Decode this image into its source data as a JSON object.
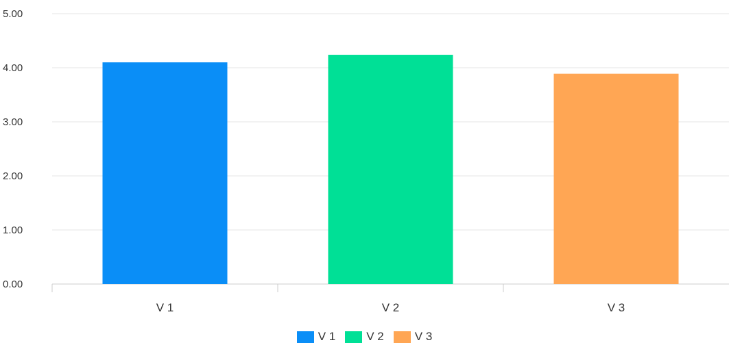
{
  "chart_data": {
    "type": "bar",
    "categories": [
      "V 1",
      "V 2",
      "V 3"
    ],
    "values": [
      4.1,
      4.24,
      3.89
    ],
    "colors": [
      "#0a8ef7",
      "#00e096",
      "#ffa654"
    ],
    "ylim": [
      0,
      5
    ],
    "y_ticks": [
      "0.00",
      "1.00",
      "2.00",
      "3.00",
      "4.00",
      "5.00"
    ],
    "grid": true,
    "legend": {
      "position": "bottom",
      "items": [
        {
          "label": "V 1",
          "color": "#0a8ef7"
        },
        {
          "label": "V 2",
          "color": "#00e096"
        },
        {
          "label": "V 3",
          "color": "#ffa654"
        }
      ]
    }
  }
}
